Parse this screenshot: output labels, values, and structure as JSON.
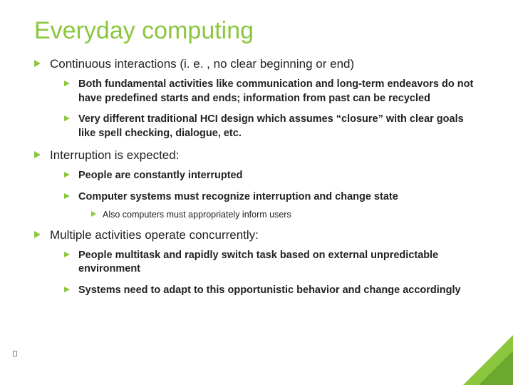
{
  "title": "Everyday computing",
  "colors": {
    "accent": "#8cc63f",
    "accent_dark": "#6aa82f",
    "text": "#222222",
    "background": "#ffffff"
  },
  "typography": {
    "title_fontsize": 34,
    "level1_fontsize": 17,
    "level2_fontsize": 14.5,
    "level3_fontsize": 12.5,
    "font_family": "Trebuchet MS"
  },
  "bullets": [
    {
      "text": "Continuous interactions (i. e. , no clear beginning or end)",
      "children": [
        {
          "text": "Both fundamental activities like communication and long-term endeavors do not have predefined starts and ends; information from past can be recycled"
        },
        {
          "text": "Very different traditional HCI design which assumes “closure” with clear goals like spell checking, dialogue, etc."
        }
      ]
    },
    {
      "text": "Interruption is expected:",
      "children": [
        {
          "text": "People are constantly interrupted"
        },
        {
          "text": "Computer systems must recognize interruption and change state",
          "children": [
            {
              "text": "Also computers must appropriately inform users"
            }
          ]
        }
      ]
    },
    {
      "text": "Multiple activities operate concurrently:",
      "children": [
        {
          "text": "People multitask and rapidly switch task based on external unpredictable environment"
        },
        {
          "text": "Systems need to adapt to this opportunistic behavior and change accordingly"
        }
      ]
    }
  ]
}
